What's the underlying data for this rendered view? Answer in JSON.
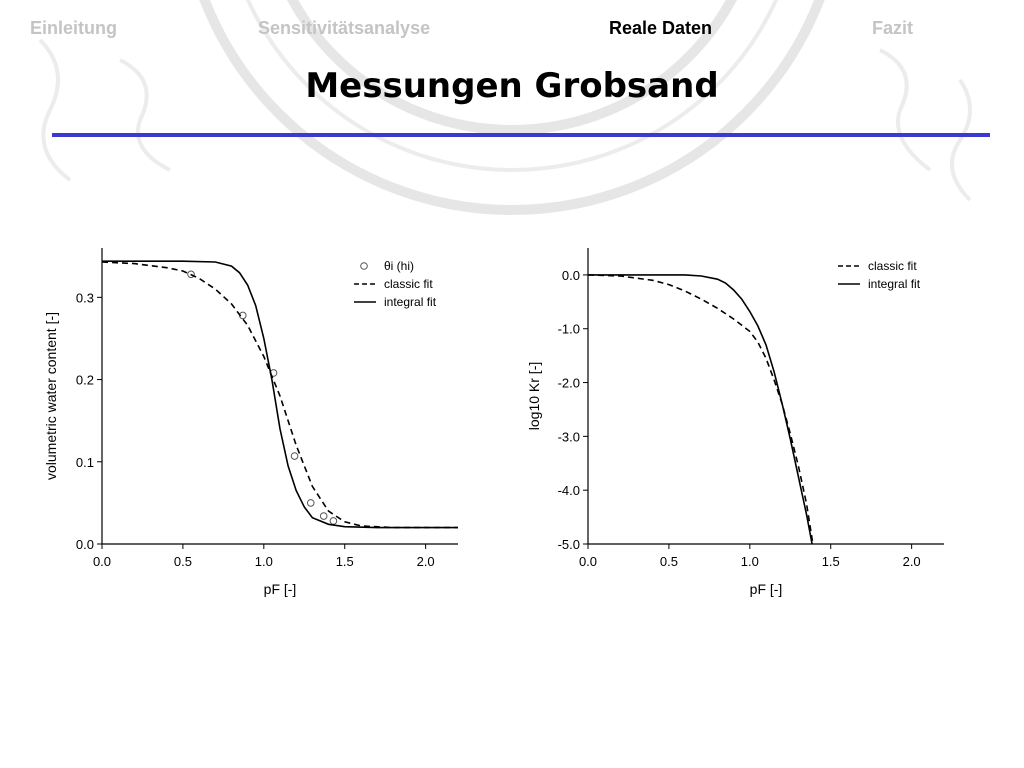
{
  "nav": {
    "items": [
      {
        "label": "Einleitung",
        "active": false
      },
      {
        "label": "Sensitivitätsanalyse",
        "active": false
      },
      {
        "label": "Reale Daten",
        "active": true
      },
      {
        "label": "Fazit",
        "active": false
      }
    ]
  },
  "title": "Messungen Grobsand",
  "colors": {
    "rule": "#3a3ad0",
    "nav_inactive": "#c4c4c4",
    "nav_active": "#000000",
    "watermark": "#e6e6e6"
  },
  "chart_data": [
    {
      "type": "line",
      "xlabel": "pF [-]",
      "ylabel": "volumetric water content [-]",
      "xlim": [
        0,
        2.2
      ],
      "ylim": [
        0,
        0.36
      ],
      "xticks": [
        "0.0",
        "0.5",
        "1.0",
        "1.5",
        "2.0"
      ],
      "yticks": [
        "0.0",
        "0.1",
        "0.2",
        "0.3"
      ],
      "legend_position": "top-right",
      "series": [
        {
          "name": "θi (hi)",
          "style": "markers",
          "points": [
            [
              0.55,
              0.328
            ],
            [
              0.87,
              0.278
            ],
            [
              1.06,
              0.208
            ],
            [
              1.19,
              0.107
            ],
            [
              1.29,
              0.05
            ],
            [
              1.37,
              0.034
            ],
            [
              1.43,
              0.028
            ]
          ]
        },
        {
          "name": "classic fit",
          "style": "dashed",
          "points": [
            [
              0.0,
              0.343
            ],
            [
              0.2,
              0.341
            ],
            [
              0.4,
              0.336
            ],
            [
              0.5,
              0.332
            ],
            [
              0.6,
              0.323
            ],
            [
              0.7,
              0.31
            ],
            [
              0.8,
              0.292
            ],
            [
              0.9,
              0.266
            ],
            [
              1.0,
              0.228
            ],
            [
              1.1,
              0.18
            ],
            [
              1.2,
              0.12
            ],
            [
              1.3,
              0.07
            ],
            [
              1.4,
              0.04
            ],
            [
              1.5,
              0.027
            ],
            [
              1.6,
              0.022
            ],
            [
              1.8,
              0.02
            ],
            [
              2.2,
              0.02
            ]
          ]
        },
        {
          "name": "integral fit",
          "style": "solid",
          "points": [
            [
              0.0,
              0.344
            ],
            [
              0.5,
              0.344
            ],
            [
              0.7,
              0.343
            ],
            [
              0.8,
              0.338
            ],
            [
              0.85,
              0.33
            ],
            [
              0.9,
              0.315
            ],
            [
              0.95,
              0.29
            ],
            [
              1.0,
              0.25
            ],
            [
              1.05,
              0.2
            ],
            [
              1.1,
              0.14
            ],
            [
              1.15,
              0.095
            ],
            [
              1.2,
              0.065
            ],
            [
              1.25,
              0.045
            ],
            [
              1.3,
              0.032
            ],
            [
              1.4,
              0.024
            ],
            [
              1.5,
              0.021
            ],
            [
              1.7,
              0.02
            ],
            [
              2.2,
              0.02
            ]
          ]
        }
      ]
    },
    {
      "type": "line",
      "xlabel": "pF [-]",
      "ylabel": "log10 Kr [-]",
      "xlim": [
        0,
        2.2
      ],
      "ylim": [
        -5.0,
        0.5
      ],
      "xticks": [
        "0.0",
        "0.5",
        "1.0",
        "1.5",
        "2.0"
      ],
      "yticks": [
        "0.0",
        "-1.0",
        "-2.0",
        "-3.0",
        "-4.0",
        "-5.0"
      ],
      "legend_position": "top-right",
      "series": [
        {
          "name": "classic fit",
          "style": "dashed",
          "points": [
            [
              0.0,
              0.0
            ],
            [
              0.2,
              -0.02
            ],
            [
              0.4,
              -0.1
            ],
            [
              0.5,
              -0.18
            ],
            [
              0.6,
              -0.3
            ],
            [
              0.7,
              -0.45
            ],
            [
              0.8,
              -0.62
            ],
            [
              0.9,
              -0.82
            ],
            [
              1.0,
              -1.05
            ],
            [
              1.05,
              -1.25
            ],
            [
              1.1,
              -1.55
            ],
            [
              1.15,
              -1.95
            ],
            [
              1.2,
              -2.4
            ],
            [
              1.25,
              -2.95
            ],
            [
              1.3,
              -3.55
            ],
            [
              1.35,
              -4.25
            ],
            [
              1.39,
              -5.0
            ]
          ]
        },
        {
          "name": "integral fit",
          "style": "solid",
          "points": [
            [
              0.0,
              0.0
            ],
            [
              0.6,
              0.0
            ],
            [
              0.7,
              -0.02
            ],
            [
              0.8,
              -0.08
            ],
            [
              0.85,
              -0.15
            ],
            [
              0.9,
              -0.28
            ],
            [
              0.95,
              -0.45
            ],
            [
              1.0,
              -0.68
            ],
            [
              1.05,
              -0.95
            ],
            [
              1.1,
              -1.3
            ],
            [
              1.15,
              -1.8
            ],
            [
              1.2,
              -2.4
            ],
            [
              1.25,
              -3.05
            ],
            [
              1.3,
              -3.75
            ],
            [
              1.35,
              -4.45
            ],
            [
              1.385,
              -5.0
            ]
          ]
        }
      ]
    }
  ]
}
